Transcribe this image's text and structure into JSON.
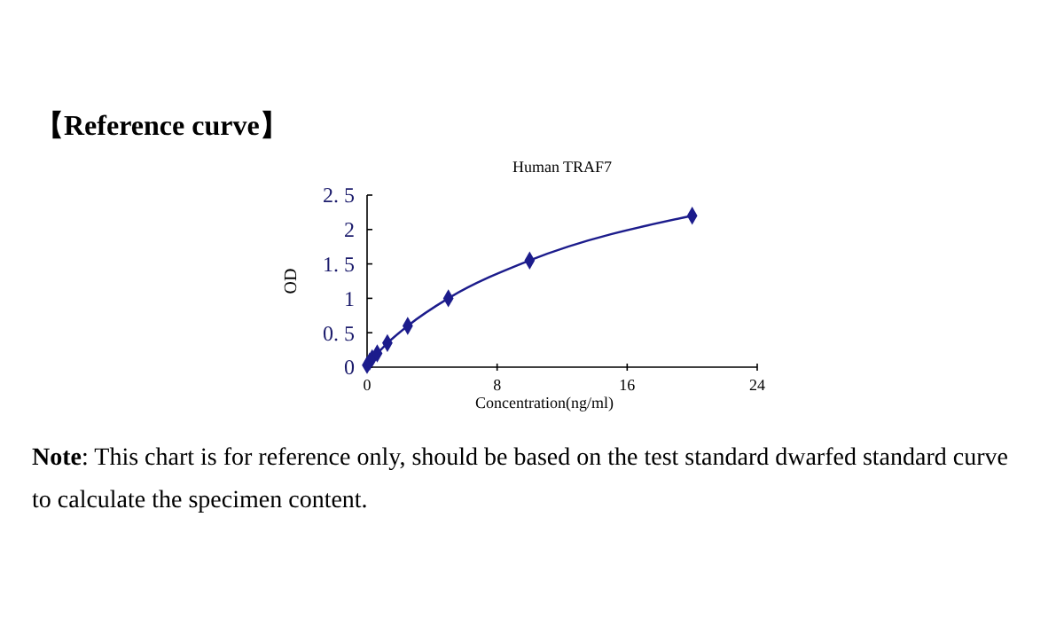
{
  "chart_data": {
    "type": "line",
    "title": "Human TRAF7",
    "xlabel": "Concentration(ng/ml)",
    "ylabel": "OD",
    "x": [
      0,
      0.156,
      0.312,
      0.625,
      1.25,
      2.5,
      5,
      10,
      20
    ],
    "series": [
      {
        "color": "#1c1c8c",
        "values": [
          0.03,
          0.08,
          0.13,
          0.2,
          0.35,
          0.6,
          1.0,
          1.55,
          2.2
        ]
      }
    ],
    "xlim": [
      0,
      24
    ],
    "xticks": [
      0,
      8,
      16,
      24
    ],
    "ylim": [
      0,
      2.5
    ],
    "yticks": [
      0,
      {
        "value": 0.5,
        "label": "0. 5"
      },
      1,
      {
        "value": 1.5,
        "label": "1. 5"
      },
      2,
      {
        "value": 2.5,
        "label": "2. 5"
      }
    ],
    "marker": "diamond",
    "line_style": "solid",
    "grid": false,
    "annotations": [
      "【Reference curve】",
      "Note: This chart is for reference only, should be based on the test standard dwarfed standard curve to calculate the specimen content."
    ]
  }
}
